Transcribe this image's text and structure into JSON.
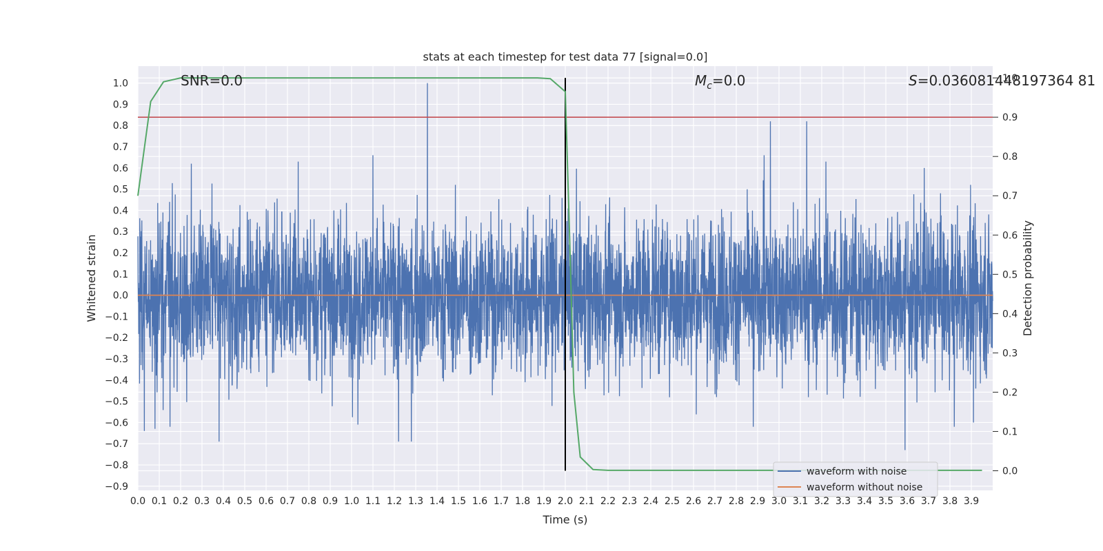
{
  "chart_data": {
    "type": "line",
    "title": "stats at each timestep for test data 77 [signal=0.0]",
    "xlabel": "Time (s)",
    "ylabel": "Whitened strain",
    "y2label": "Detection probability",
    "xlim": [
      0.0,
      4.0
    ],
    "ylim": [
      -0.92,
      1.08
    ],
    "y2lim": [
      -0.05,
      1.03
    ],
    "x_ticks": [
      "0.0",
      "0.1",
      "0.2",
      "0.3",
      "0.4",
      "0.5",
      "0.6",
      "0.7",
      "0.8",
      "0.9",
      "1.0",
      "1.1",
      "1.2",
      "1.3",
      "1.4",
      "1.5",
      "1.6",
      "1.7",
      "1.8",
      "1.9",
      "2.0",
      "2.1",
      "2.2",
      "2.3",
      "2.4",
      "2.5",
      "2.6",
      "2.7",
      "2.8",
      "2.9",
      "3.0",
      "3.1",
      "3.2",
      "3.3",
      "3.4",
      "3.5",
      "3.6",
      "3.7",
      "3.8",
      "3.9"
    ],
    "y_ticks": [
      "1.0",
      "0.9",
      "0.8",
      "0.7",
      "0.6",
      "0.5",
      "0.4",
      "0.3",
      "0.2",
      "0.1",
      "0.0",
      "−0.1",
      "−0.2",
      "−0.3",
      "−0.4",
      "−0.5",
      "−0.6",
      "−0.7",
      "−0.8",
      "−0.9"
    ],
    "y2_ticks": [
      "1.0",
      "0.9",
      "0.8",
      "0.7",
      "0.6",
      "0.5",
      "0.4",
      "0.3",
      "0.2",
      "0.1",
      "0.0"
    ],
    "grid": true,
    "legend_position": "bottom-right",
    "annotations": {
      "snr": "SNR=0.0",
      "mc_symbol": "M",
      "mc_sub": "c",
      "mc_value": "=0.0",
      "s_symbol": "S",
      "s_value": "=0.036081448197364 81"
    },
    "noise": {
      "name": "waveform with noise",
      "color": "#4c72b0",
      "samples": 4096,
      "sigma": 0.18,
      "seed": 77,
      "spikes": [
        {
          "x": 1.355,
          "y": 1.0
        },
        {
          "x": 2.96,
          "y": 0.82
        },
        {
          "x": 3.13,
          "y": 0.82
        },
        {
          "x": 0.38,
          "y": -0.69
        },
        {
          "x": 1.22,
          "y": -0.69
        },
        {
          "x": 1.28,
          "y": -0.69
        },
        {
          "x": 3.59,
          "y": -0.73
        },
        {
          "x": 0.03,
          "y": -0.64
        },
        {
          "x": 0.08,
          "y": -0.63
        },
        {
          "x": 0.15,
          "y": -0.62
        },
        {
          "x": 1.03,
          "y": -0.61
        },
        {
          "x": 2.88,
          "y": -0.62
        },
        {
          "x": 3.82,
          "y": -0.62
        },
        {
          "x": 3.91,
          "y": -0.6
        },
        {
          "x": 0.25,
          "y": 0.62
        },
        {
          "x": 0.75,
          "y": 0.63
        },
        {
          "x": 1.1,
          "y": 0.66
        },
        {
          "x": 2.93,
          "y": 0.66
        },
        {
          "x": 3.22,
          "y": 0.63
        },
        {
          "x": 3.68,
          "y": 0.6
        }
      ]
    },
    "clean": {
      "name": "waveform without noise",
      "color": "#dd8452",
      "value": 0.0
    },
    "detection": {
      "name": "detection probability",
      "color": "#55a868",
      "x": [
        0.0,
        0.06,
        0.12,
        0.2,
        0.35,
        0.6,
        1.0,
        1.5,
        1.87,
        1.93,
        2.0,
        2.02,
        2.04,
        2.07,
        2.13,
        2.2,
        2.4,
        2.7,
        3.0,
        3.3,
        3.6,
        3.95
      ],
      "y": [
        0.7,
        0.94,
        0.99,
        1.0,
        1.0,
        1.0,
        1.0,
        1.0,
        1.0,
        0.998,
        0.965,
        0.6,
        0.2,
        0.035,
        0.003,
        0.001,
        0.001,
        0.001,
        0.001,
        0.001,
        0.001,
        0.001
      ]
    },
    "threshold": {
      "color": "#c44e52",
      "value": 0.9
    },
    "marker_x": 2.0
  }
}
